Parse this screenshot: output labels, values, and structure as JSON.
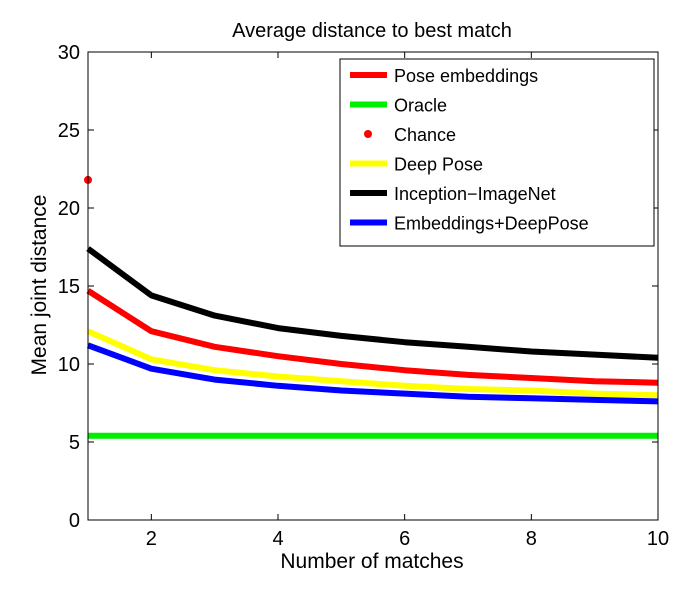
{
  "chart_data": {
    "type": "line",
    "title": "Average distance to best match",
    "xlabel": "Number of matches",
    "ylabel": "Mean joint distance",
    "xlim": [
      1,
      10
    ],
    "ylim": [
      0,
      30
    ],
    "xticks": [
      2,
      4,
      6,
      8,
      10
    ],
    "yticks": [
      0,
      5,
      10,
      15,
      20,
      25,
      30
    ],
    "grid": false,
    "legend_position": "top-right",
    "x": [
      1,
      2,
      3,
      4,
      5,
      6,
      7,
      8,
      9,
      10
    ],
    "series": [
      {
        "name": "Pose embeddings",
        "color": "#ff0000",
        "style": "line",
        "values": [
          14.7,
          12.1,
          11.1,
          10.5,
          10.0,
          9.6,
          9.3,
          9.1,
          8.9,
          8.8
        ]
      },
      {
        "name": "Oracle",
        "color": "#00ee00",
        "style": "line",
        "values": [
          5.4,
          5.4,
          5.4,
          5.4,
          5.4,
          5.4,
          5.4,
          5.4,
          5.4,
          5.4
        ]
      },
      {
        "name": "Chance",
        "color": "#ff0000",
        "style": "point",
        "x": [
          1
        ],
        "values": [
          21.8
        ]
      },
      {
        "name": "Deep Pose",
        "color": "#ffff00",
        "style": "line",
        "values": [
          12.1,
          10.3,
          9.6,
          9.2,
          8.9,
          8.6,
          8.4,
          8.3,
          8.1,
          8.0
        ]
      },
      {
        "name": "Inception−ImageNet",
        "color": "#000000",
        "style": "line",
        "values": [
          17.4,
          14.4,
          13.1,
          12.3,
          11.8,
          11.4,
          11.1,
          10.8,
          10.6,
          10.4
        ]
      },
      {
        "name": "Embeddings+DeepPose",
        "color": "#0000ff",
        "style": "line",
        "values": [
          11.2,
          9.7,
          9.0,
          8.6,
          8.3,
          8.1,
          7.9,
          7.8,
          7.7,
          7.6
        ]
      }
    ]
  }
}
